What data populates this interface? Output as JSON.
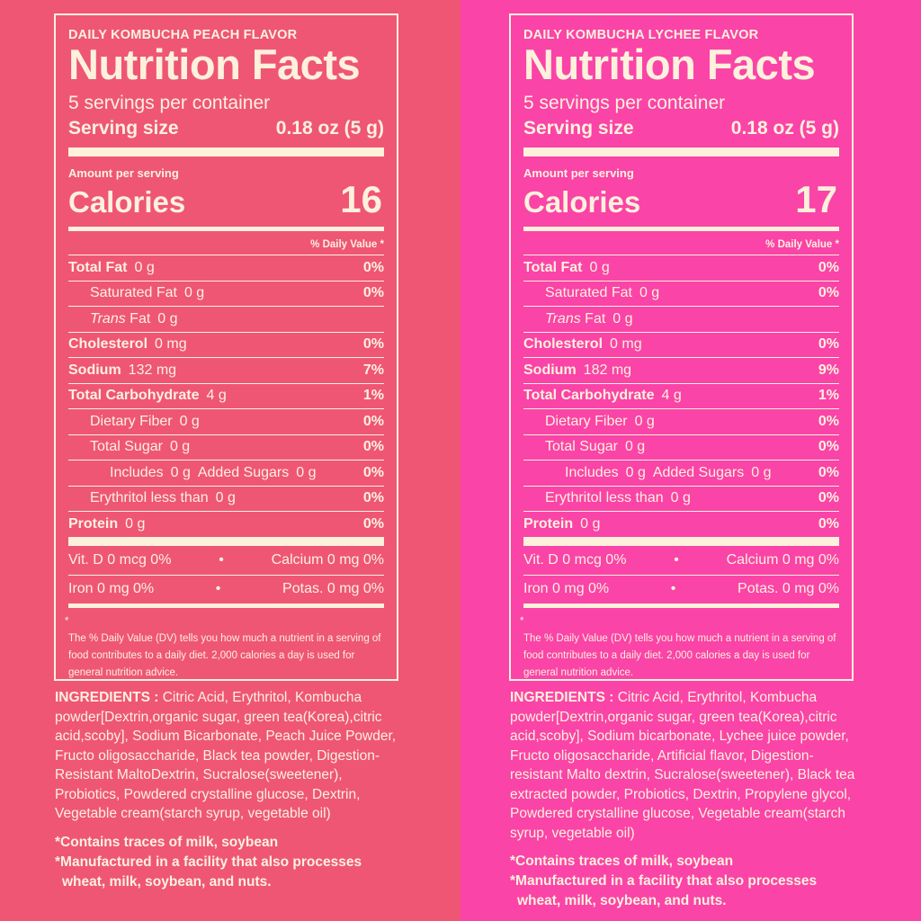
{
  "panels": [
    {
      "brand": "DAILY KOMBUCHA PEACH FLAVOR",
      "title": "Nutrition Facts",
      "servings": "5 servings per container",
      "serving_size_label": "Serving size",
      "serving_size_value": "0.18 oz (5 g)",
      "amount_per_serving": "Amount per serving",
      "calories_label": "Calories",
      "calories_value": "16",
      "daily_value_header": "% Daily Value *",
      "rows": {
        "total_fat": {
          "label": "Total Fat",
          "amount": "0 g",
          "pct": "0%"
        },
        "sat_fat": {
          "label": "Saturated Fat",
          "amount": "0 g",
          "pct": "0%"
        },
        "trans_fat": {
          "label_i": "Trans",
          "label": "Fat",
          "amount": "0 g"
        },
        "cholesterol": {
          "label": "Cholesterol",
          "amount": "0 mg",
          "pct": "0%"
        },
        "sodium": {
          "label": "Sodium",
          "amount": "132 mg",
          "pct": "7%"
        },
        "carb": {
          "label": "Total Carbohydrate",
          "amount": "4 g",
          "pct": "1%"
        },
        "fiber": {
          "label": "Dietary Fiber",
          "amount": "0 g",
          "pct": "0%"
        },
        "sugar": {
          "label": "Total Sugar",
          "amount": "0 g",
          "pct": "0%"
        },
        "added": {
          "label": "Includes",
          "amount": "0 g",
          "label2": "Added Sugars",
          "amount2": "0 g",
          "pct": "0%"
        },
        "erythritol": {
          "label": "Erythritol less than",
          "amount": "0 g",
          "pct": "0%"
        },
        "protein": {
          "label": "Protein",
          "amount": "0 g",
          "pct": "0%"
        }
      },
      "vit_d": "Vit. D  0 mcg 0%",
      "calcium": "Calcium  0 mg 0%",
      "iron": "Iron  0 mg 0%",
      "potas": "Potas.  0 mg 0%",
      "bullet": "•",
      "footnote_star": "*",
      "footnote": "The % Daily Value (DV) tells you how much a nutrient in a serving of food contributes to a daily diet. 2,000 calories a day is used for general nutrition advice.",
      "ingredients_label": "INGREDIENTS :",
      "ingredients": " Citric Acid, Erythritol, Kombucha powder[Dextrin,organic sugar, green tea(Korea),citric acid,scoby], Sodium Bicarbonate, Peach Juice Powder, Fructo oligosaccharide,  Black tea powder, Digestion-Resistant MaltoDextrin, Sucralose(sweetener), Probiotics, Powdered crystalline glucose, Dextrin, Vegetable cream(starch syrup, vegetable oil)",
      "note1": "*Contains traces of milk, soybean",
      "note2a": "*Manufactured in a facility that also processes",
      "note2b": "wheat, milk, soybean, and nuts."
    },
    {
      "brand": "DAILY KOMBUCHA LYCHEE FLAVOR",
      "title": "Nutrition Facts",
      "servings": "5 servings per container",
      "serving_size_label": "Serving size",
      "serving_size_value": "0.18 oz (5 g)",
      "amount_per_serving": "Amount per serving",
      "calories_label": "Calories",
      "calories_value": "17",
      "daily_value_header": "% Daily Value *",
      "rows": {
        "total_fat": {
          "label": "Total Fat",
          "amount": "0 g",
          "pct": "0%"
        },
        "sat_fat": {
          "label": "Saturated Fat",
          "amount": "0 g",
          "pct": "0%"
        },
        "trans_fat": {
          "label_i": "Trans",
          "label": "Fat",
          "amount": "0 g"
        },
        "cholesterol": {
          "label": "Cholesterol",
          "amount": "0 mg",
          "pct": "0%"
        },
        "sodium": {
          "label": "Sodium",
          "amount": "182 mg",
          "pct": "9%"
        },
        "carb": {
          "label": "Total Carbohydrate",
          "amount": "4 g",
          "pct": "1%"
        },
        "fiber": {
          "label": "Dietary Fiber",
          "amount": "0 g",
          "pct": "0%"
        },
        "sugar": {
          "label": "Total Sugar",
          "amount": "0 g",
          "pct": "0%"
        },
        "added": {
          "label": "Includes",
          "amount": "0 g",
          "label2": "Added Sugars",
          "amount2": "0 g",
          "pct": "0%"
        },
        "erythritol": {
          "label": "Erythritol less than",
          "amount": "0 g",
          "pct": "0%"
        },
        "protein": {
          "label": "Protein",
          "amount": "0 g",
          "pct": "0%"
        }
      },
      "vit_d": "Vit. D  0 mcg 0%",
      "calcium": "Calcium  0 mg 0%",
      "iron": "Iron  0 mg 0%",
      "potas": "Potas.  0 mg 0%",
      "bullet": "•",
      "footnote_star": "*",
      "footnote": "The % Daily Value (DV) tells you how much a nutrient in a serving of food contributes to a daily diet. 2,000 calories a day is used for general nutrition advice.",
      "ingredients_label": "INGREDIENTS :",
      "ingredients": " Citric Acid, Erythritol, Kombucha powder[Dextrin,organic sugar, green tea(Korea),citric acid,scoby], Sodium bicarbonate, Lychee juice powder, Fructo oligosaccharide, Artificial flavor, Digestion-resistant Malto dextrin, Sucralose(sweetener), Black tea extracted powder, Probiotics, Dextrin, Propylene glycol, Powdered crystalline glucose, Vegetable cream(starch syrup, vegetable oil)",
      "note1": "*Contains traces of milk, soybean",
      "note2a": "*Manufactured in a facility that also processes",
      "note2b": "wheat, milk, soybean, and nuts."
    }
  ],
  "colors": {
    "peach_bg": "#ef5674",
    "lychee_bg": "#fa44a7",
    "text": "#fdf1dc"
  }
}
